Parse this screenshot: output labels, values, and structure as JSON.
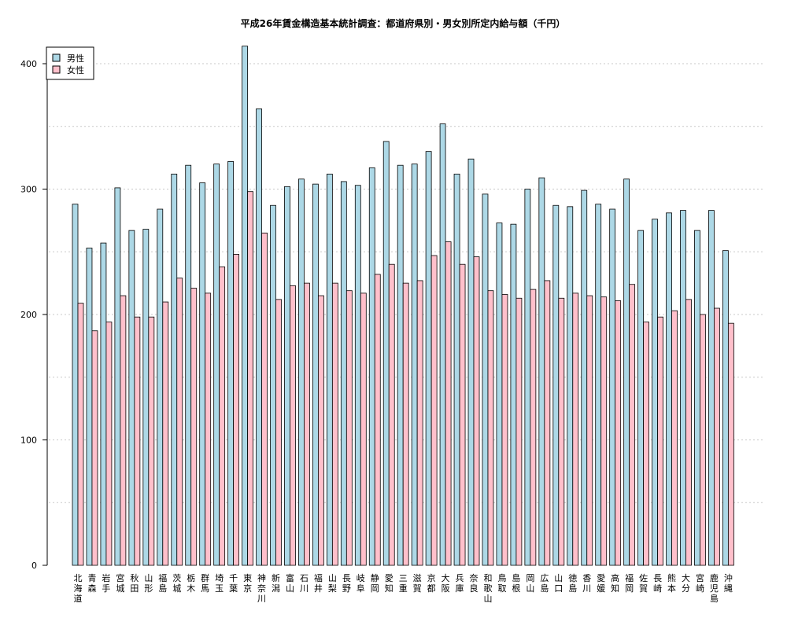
{
  "chart_data": {
    "type": "bar",
    "title": "平成26年賃金構造基本統計調査：都道府県別・男女別所定内給与額（千円）",
    "xlabel": "",
    "ylabel": "",
    "ylim": [
      0,
      420
    ],
    "yticks": [
      0,
      100,
      200,
      300,
      400
    ],
    "grid": true,
    "legend_position": "top-left",
    "highlight_category": "鳥取",
    "highlight_color": "#ff0000",
    "categories": [
      "北海道",
      "青森",
      "岩手",
      "宮城",
      "秋田",
      "山形",
      "福島",
      "茨城",
      "栃木",
      "群馬",
      "埼玉",
      "千葉",
      "東京",
      "神奈川",
      "新潟",
      "富山",
      "石川",
      "福井",
      "山梨",
      "長野",
      "岐阜",
      "静岡",
      "愛知",
      "三重",
      "滋賀",
      "京都",
      "大阪",
      "兵庫",
      "奈良",
      "和歌山",
      "鳥取",
      "島根",
      "岡山",
      "広島",
      "山口",
      "徳島",
      "香川",
      "愛媛",
      "高知",
      "福岡",
      "佐賀",
      "長崎",
      "熊本",
      "大分",
      "宮崎",
      "鹿児島",
      "沖縄"
    ],
    "series": [
      {
        "name": "男性",
        "color": "#add8e6",
        "values": [
          288,
          253,
          257,
          301,
          267,
          268,
          284,
          312,
          319,
          305,
          320,
          322,
          414,
          364,
          287,
          302,
          308,
          304,
          312,
          306,
          303,
          317,
          338,
          319,
          320,
          330,
          352,
          312,
          324,
          296,
          273,
          272,
          300,
          309,
          287,
          286,
          299,
          288,
          284,
          308,
          267,
          276,
          281,
          283,
          267,
          283,
          251
        ]
      },
      {
        "name": "女性",
        "color": "#ffc0cb",
        "values": [
          209,
          187,
          194,
          215,
          198,
          198,
          210,
          229,
          221,
          217,
          238,
          248,
          298,
          265,
          212,
          223,
          225,
          215,
          225,
          219,
          217,
          232,
          240,
          225,
          227,
          247,
          258,
          240,
          246,
          219,
          216,
          213,
          220,
          227,
          213,
          217,
          215,
          214,
          211,
          224,
          194,
          198,
          203,
          212,
          200,
          205,
          193
        ]
      }
    ]
  }
}
